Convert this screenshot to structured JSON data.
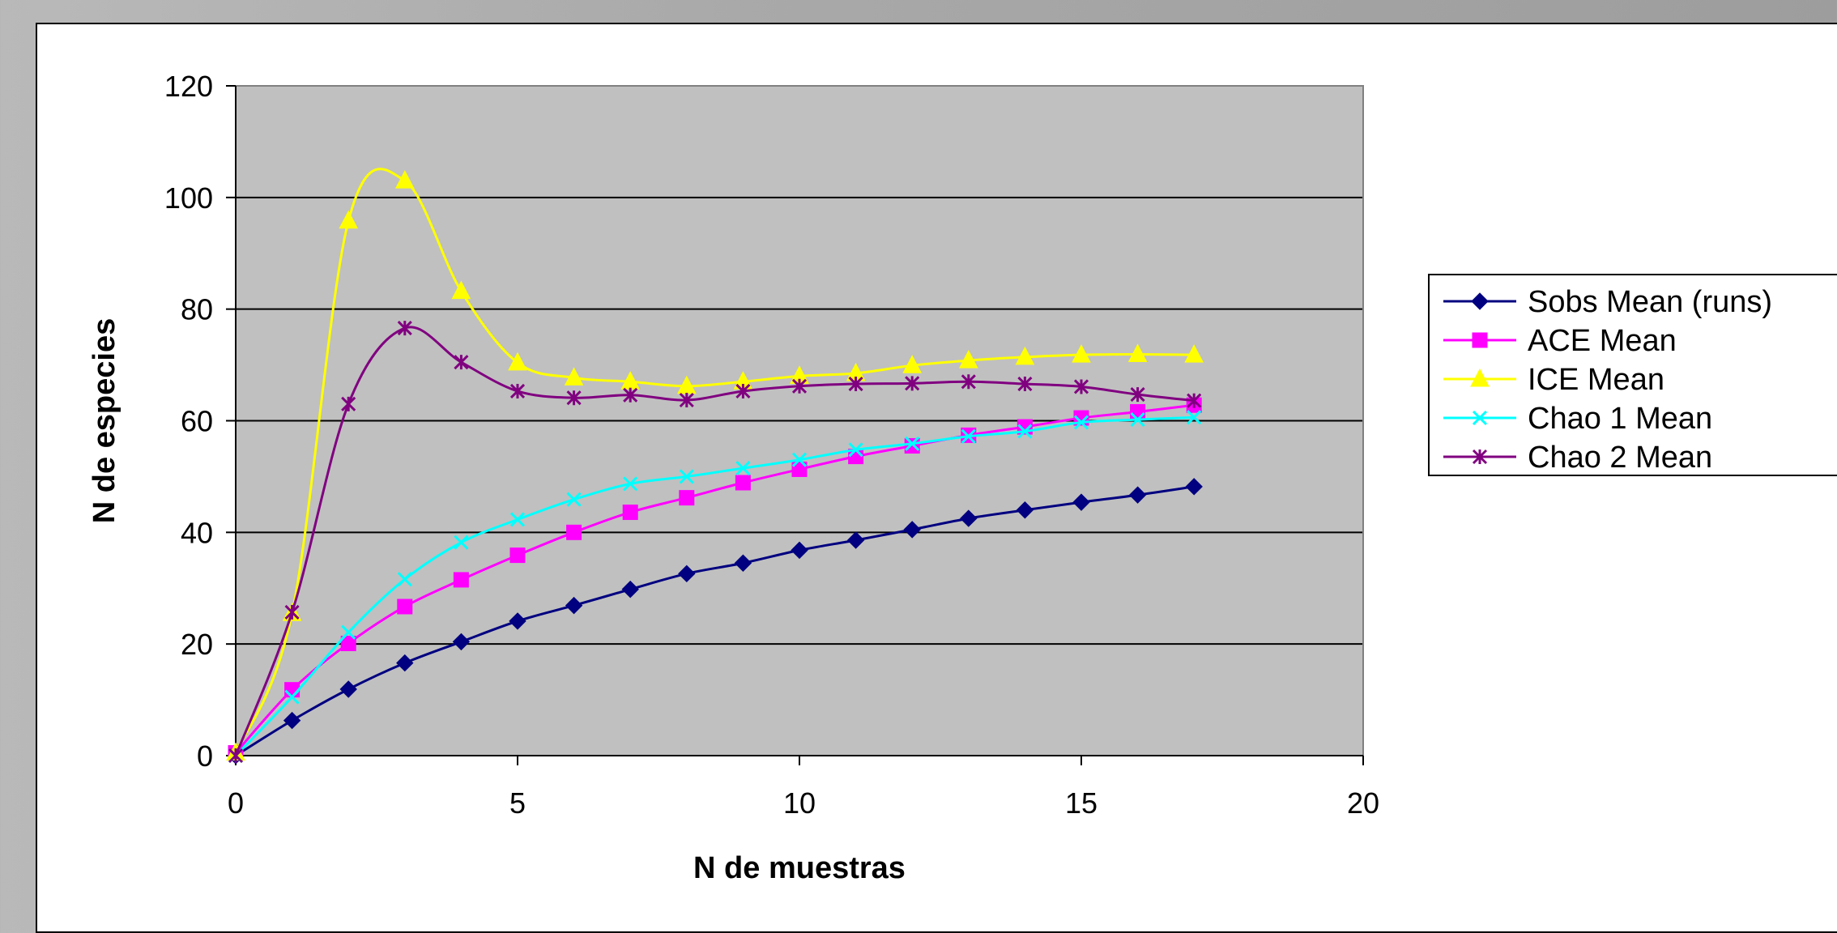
{
  "chart_data": {
    "type": "line",
    "title": "",
    "xlabel": "N de muestras",
    "ylabel": "N de especies",
    "xlim": [
      0,
      20
    ],
    "ylim": [
      0,
      120
    ],
    "x_ticks": [
      0,
      5,
      10,
      15,
      20
    ],
    "y_ticks": [
      0,
      20,
      40,
      60,
      80,
      100,
      120
    ],
    "grid": true,
    "legend_placement": "right",
    "plot_background": "#c0c0c0",
    "x": [
      0,
      1,
      2,
      3,
      4,
      5,
      6,
      7,
      8,
      9,
      10,
      11,
      12,
      13,
      14,
      15,
      16,
      17
    ],
    "series": [
      {
        "name": "Sobs Mean (runs)",
        "color": "#000080",
        "marker": "diamond",
        "values": [
          0,
          6.3,
          11.9,
          16.6,
          20.4,
          24.1,
          26.9,
          29.8,
          32.6,
          34.5,
          36.8,
          38.6,
          40.5,
          42.5,
          44.0,
          45.4,
          46.7,
          48.2
        ]
      },
      {
        "name": "ACE Mean",
        "color": "#ff00ff",
        "marker": "square",
        "values": [
          0.5,
          11.8,
          20.1,
          26.7,
          31.5,
          35.9,
          40.0,
          43.6,
          46.2,
          48.9,
          51.3,
          53.6,
          55.5,
          57.4,
          58.9,
          60.5,
          61.6,
          62.8
        ]
      },
      {
        "name": "ICE Mean",
        "color": "#ffff00",
        "marker": "triangle",
        "values": [
          0.5,
          25.5,
          95.8,
          103.0,
          83.2,
          70.4,
          67.7,
          67.0,
          66.2,
          67.0,
          68.0,
          68.5,
          69.9,
          70.8,
          71.4,
          71.8,
          71.9,
          71.8
        ]
      },
      {
        "name": "Chao 1 Mean",
        "color": "#00ffff",
        "marker": "x",
        "values": [
          0,
          10.5,
          22.1,
          31.6,
          38.2,
          42.3,
          45.9,
          48.7,
          50.0,
          51.5,
          53.0,
          54.8,
          55.9,
          57.2,
          58.1,
          59.7,
          60.2,
          60.6
        ]
      },
      {
        "name": "Chao 2 Mean",
        "color": "#800080",
        "marker": "asterisk",
        "values": [
          0,
          25.7,
          63.0,
          76.6,
          70.5,
          65.3,
          64.1,
          64.6,
          63.7,
          65.3,
          66.2,
          66.6,
          66.7,
          67.0,
          66.6,
          66.1,
          64.7,
          63.6
        ]
      }
    ]
  }
}
